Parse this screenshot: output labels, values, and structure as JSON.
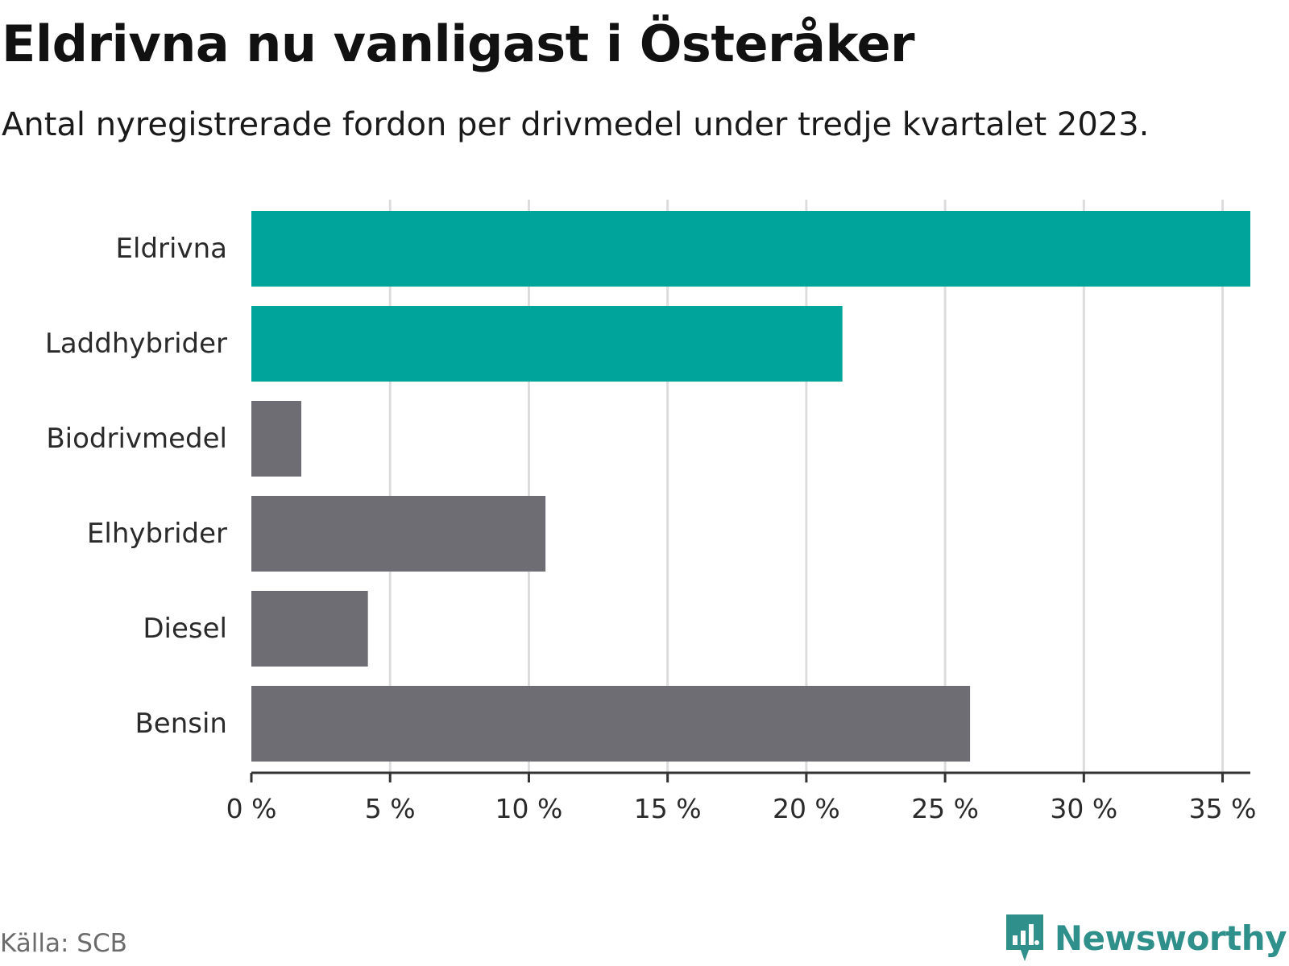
{
  "title": "Eldrivna nu vanligast i Österåker",
  "subtitle": "Antal nyregistrerade fordon per drivmedel under tredje kvartalet 2023.",
  "source": "Källa: SCB",
  "brand": {
    "name": "Newsworthy",
    "icon": "newsworthy-logo-icon",
    "color": "#2f8f8a"
  },
  "colors": {
    "highlight": "#00a49a",
    "default": "#6e6d74",
    "grid": "#dcdcdc",
    "axis": "#333333"
  },
  "chart_data": {
    "type": "bar",
    "orientation": "horizontal",
    "categories": [
      "Eldrivna",
      "Laddhybrider",
      "Biodrivmedel",
      "Elhybrider",
      "Diesel",
      "Bensin"
    ],
    "values": [
      36.0,
      21.3,
      1.8,
      10.6,
      4.2,
      25.9
    ],
    "highlighted": [
      true,
      true,
      false,
      false,
      false,
      false
    ],
    "unit": "%",
    "xlim": [
      0,
      36
    ],
    "xticks": [
      0,
      5,
      10,
      15,
      20,
      25,
      30,
      35
    ],
    "xtick_labels": [
      "0 %",
      "5 %",
      "10 %",
      "15 %",
      "20 %",
      "25 %",
      "30 %",
      "35 %"
    ],
    "grid": true,
    "xlabel": "",
    "ylabel": ""
  }
}
